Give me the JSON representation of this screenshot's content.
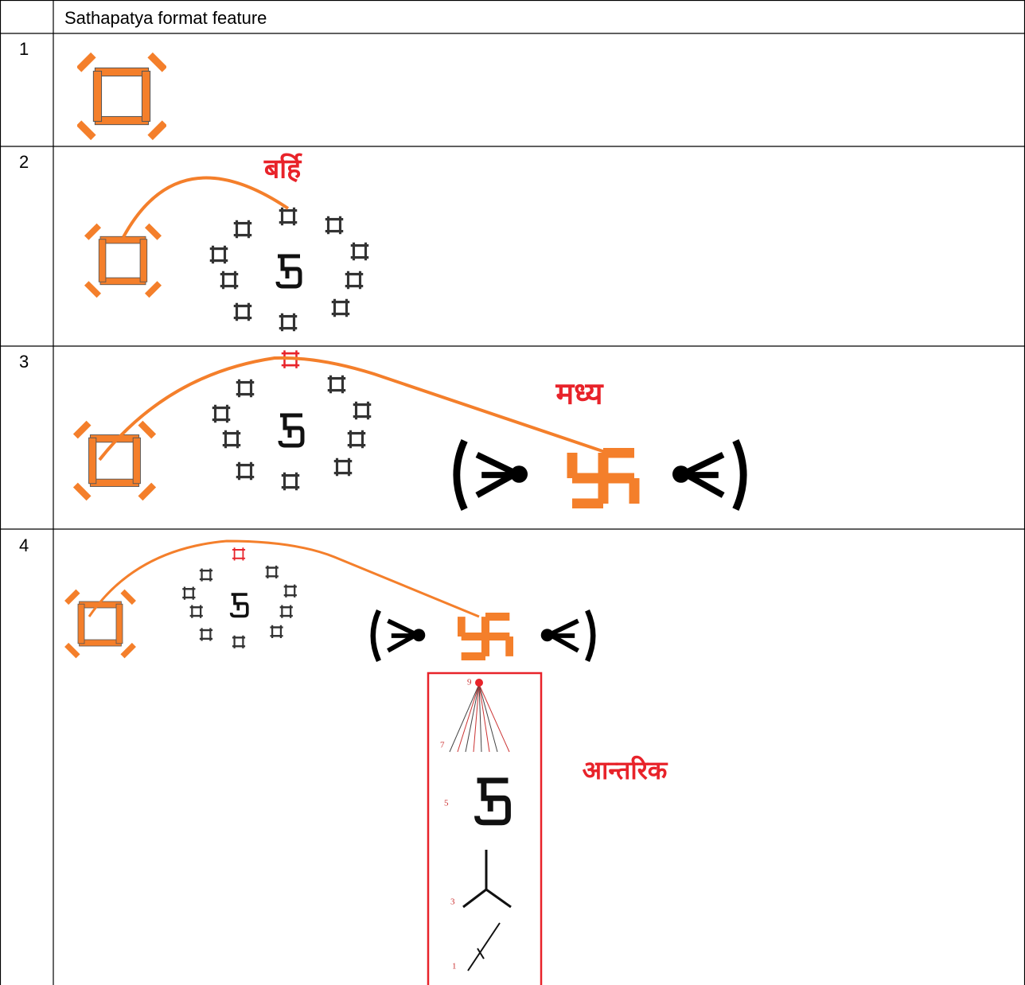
{
  "table": {
    "header": {
      "title": "Sathapatya format feature"
    },
    "rows": [
      {
        "number": "1"
      },
      {
        "number": "2",
        "label": "बर्हि"
      },
      {
        "number": "3",
        "label": "मध्य"
      },
      {
        "number": "4",
        "label": "आन्तरिक",
        "scale": [
          "9",
          "7",
          "5",
          "3",
          "1"
        ]
      }
    ]
  }
}
